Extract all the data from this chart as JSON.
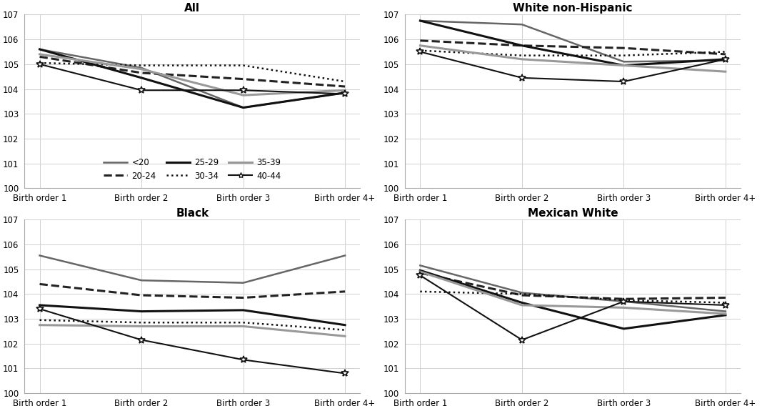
{
  "subplots": [
    {
      "title": "All",
      "series": [
        {
          "label": "<20",
          "color": "#666666",
          "lw": 1.8,
          "ls": "solid",
          "marker": null,
          "values": [
            105.6,
            104.85,
            103.25,
            103.85
          ]
        },
        {
          "label": "20-24",
          "color": "#222222",
          "lw": 2.2,
          "ls": "dashed",
          "marker": null,
          "values": [
            105.3,
            104.65,
            104.4,
            104.1
          ]
        },
        {
          "label": "25-29",
          "color": "#111111",
          "lw": 2.2,
          "ls": "solid",
          "marker": null,
          "values": [
            105.6,
            104.45,
            103.25,
            103.85
          ]
        },
        {
          "label": "30-34",
          "color": "#111111",
          "lw": 1.8,
          "ls": "dotted",
          "marker": null,
          "values": [
            105.05,
            104.95,
            104.95,
            104.3
          ]
        },
        {
          "label": "35-39",
          "color": "#999999",
          "lw": 2.2,
          "ls": "solid",
          "marker": null,
          "values": [
            105.4,
            104.8,
            103.75,
            103.95
          ]
        },
        {
          "label": "40-44",
          "color": "#111111",
          "lw": 1.5,
          "ls": "solid",
          "marker": "*",
          "values": [
            105.0,
            103.95,
            103.95,
            103.8
          ]
        }
      ],
      "ylim": [
        100,
        107
      ],
      "yticks": [
        100,
        101,
        102,
        103,
        104,
        105,
        106,
        107
      ],
      "show_legend": true
    },
    {
      "title": "White non-Hispanic",
      "series": [
        {
          "label": "<20",
          "color": "#666666",
          "lw": 1.8,
          "ls": "solid",
          "marker": null,
          "values": [
            106.75,
            106.6,
            105.1,
            105.15
          ]
        },
        {
          "label": "20-24",
          "color": "#222222",
          "lw": 2.2,
          "ls": "dashed",
          "marker": null,
          "values": [
            105.95,
            105.75,
            105.65,
            105.4
          ]
        },
        {
          "label": "25-29",
          "color": "#111111",
          "lw": 2.2,
          "ls": "solid",
          "marker": null,
          "values": [
            106.75,
            105.75,
            104.95,
            105.2
          ]
        },
        {
          "label": "30-34",
          "color": "#111111",
          "lw": 1.8,
          "ls": "dotted",
          "marker": null,
          "values": [
            105.55,
            105.35,
            105.35,
            105.5
          ]
        },
        {
          "label": "35-39",
          "color": "#999999",
          "lw": 2.2,
          "ls": "solid",
          "marker": null,
          "values": [
            105.75,
            105.2,
            104.95,
            104.7
          ]
        },
        {
          "label": "40-44",
          "color": "#111111",
          "lw": 1.5,
          "ls": "solid",
          "marker": "*",
          "values": [
            105.5,
            104.45,
            104.3,
            105.2
          ]
        }
      ],
      "ylim": [
        100,
        107
      ],
      "yticks": [
        100,
        101,
        102,
        103,
        104,
        105,
        106,
        107
      ],
      "show_legend": false
    },
    {
      "title": "Black",
      "series": [
        {
          "label": "<20",
          "color": "#666666",
          "lw": 1.8,
          "ls": "solid",
          "marker": null,
          "values": [
            105.55,
            104.55,
            104.45,
            105.55
          ]
        },
        {
          "label": "20-24",
          "color": "#222222",
          "lw": 2.2,
          "ls": "dashed",
          "marker": null,
          "values": [
            104.4,
            103.95,
            103.85,
            104.1
          ]
        },
        {
          "label": "25-29",
          "color": "#111111",
          "lw": 2.2,
          "ls": "solid",
          "marker": null,
          "values": [
            103.55,
            103.3,
            103.35,
            102.75
          ]
        },
        {
          "label": "30-34",
          "color": "#111111",
          "lw": 1.8,
          "ls": "dotted",
          "marker": null,
          "values": [
            102.95,
            102.85,
            102.85,
            102.55
          ]
        },
        {
          "label": "35-39",
          "color": "#999999",
          "lw": 2.2,
          "ls": "solid",
          "marker": null,
          "values": [
            102.75,
            102.7,
            102.7,
            102.3
          ]
        },
        {
          "label": "40-44",
          "color": "#111111",
          "lw": 1.5,
          "ls": "solid",
          "marker": "*",
          "values": [
            103.4,
            102.15,
            101.35,
            100.8
          ]
        }
      ],
      "ylim": [
        100,
        107
      ],
      "yticks": [
        100,
        101,
        102,
        103,
        104,
        105,
        106,
        107
      ],
      "show_legend": false
    },
    {
      "title": "Mexican White",
      "series": [
        {
          "label": "<20",
          "color": "#666666",
          "lw": 1.8,
          "ls": "solid",
          "marker": null,
          "values": [
            105.15,
            104.05,
            103.7,
            103.3
          ]
        },
        {
          "label": "20-24",
          "color": "#222222",
          "lw": 2.2,
          "ls": "dashed",
          "marker": null,
          "values": [
            104.85,
            103.95,
            103.8,
            103.85
          ]
        },
        {
          "label": "25-29",
          "color": "#111111",
          "lw": 2.2,
          "ls": "solid",
          "marker": null,
          "values": [
            104.95,
            103.65,
            102.6,
            103.15
          ]
        },
        {
          "label": "30-34",
          "color": "#111111",
          "lw": 1.8,
          "ls": "dotted",
          "marker": null,
          "values": [
            104.1,
            104.0,
            103.75,
            103.65
          ]
        },
        {
          "label": "35-39",
          "color": "#999999",
          "lw": 2.2,
          "ls": "solid",
          "marker": null,
          "values": [
            104.9,
            103.55,
            103.45,
            103.2
          ]
        },
        {
          "label": "40-44",
          "color": "#111111",
          "lw": 1.5,
          "ls": "solid",
          "marker": "*",
          "values": [
            104.75,
            102.15,
            103.7,
            103.55
          ]
        }
      ],
      "ylim": [
        100,
        107
      ],
      "yticks": [
        100,
        101,
        102,
        103,
        104,
        105,
        106,
        107
      ],
      "show_legend": false
    }
  ],
  "x_labels": [
    "Birth order 1",
    "Birth order 2",
    "Birth order 3",
    "Birth order 4+"
  ],
  "legend_items": [
    {
      "label": "<20",
      "color": "#666666",
      "lw": 1.8,
      "ls": "solid",
      "marker": null
    },
    {
      "label": "20-24",
      "color": "#222222",
      "lw": 2.2,
      "ls": "dashed",
      "marker": null
    },
    {
      "label": "25-29",
      "color": "#111111",
      "lw": 2.2,
      "ls": "solid",
      "marker": null
    },
    {
      "label": "30-34",
      "color": "#111111",
      "lw": 1.8,
      "ls": "dotted",
      "marker": null
    },
    {
      "label": "35-39",
      "color": "#999999",
      "lw": 2.2,
      "ls": "solid",
      "marker": null
    },
    {
      "label": "40-44",
      "color": "#111111",
      "lw": 1.5,
      "ls": "solid",
      "marker": "*"
    }
  ],
  "bg_color": "#ffffff",
  "grid_color": "#d0d0d0",
  "title_fontsize": 11,
  "tick_fontsize": 8.5,
  "xlabel_fontsize": 8.5
}
